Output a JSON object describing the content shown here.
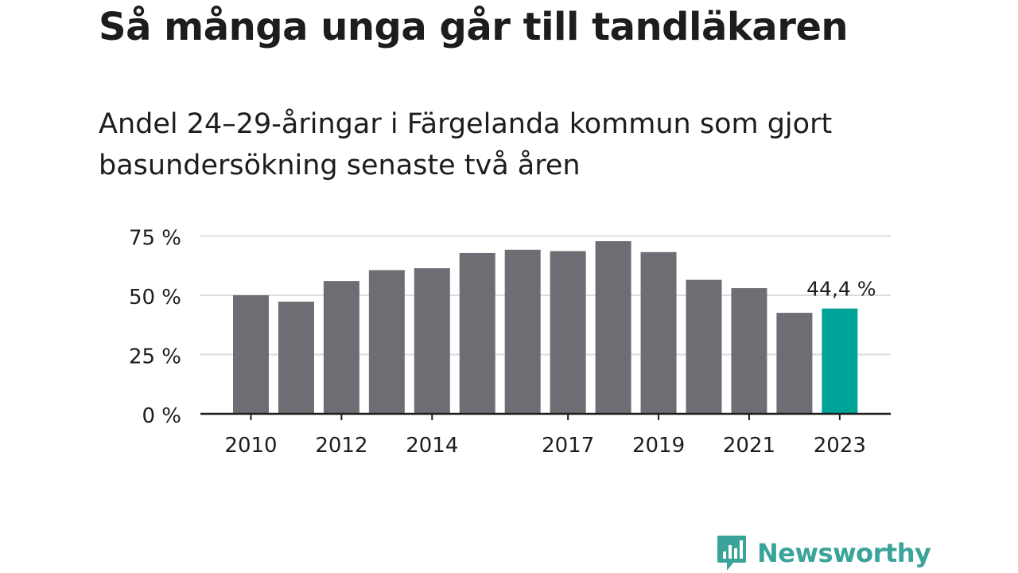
{
  "title": "Så många unga går till tandläkaren",
  "subtitle": "Andel 24–29-åringar i Färgelanda kommun som gjort basundersökning senaste två åren",
  "brand": "Newsworthy",
  "chart_data": {
    "type": "bar",
    "categories": [
      "2010",
      "2011",
      "2012",
      "2013",
      "2014",
      "2015",
      "2016",
      "2017",
      "2018",
      "2019",
      "2020",
      "2021",
      "2022",
      "2023"
    ],
    "values": [
      50.0,
      47.3,
      56.0,
      60.6,
      61.4,
      67.8,
      69.2,
      68.6,
      72.8,
      68.2,
      56.5,
      53.0,
      42.6,
      44.4
    ],
    "x_tick_labels": [
      "2010",
      "",
      "2012",
      "",
      "2014",
      "",
      "",
      "2017",
      "",
      "2019",
      "",
      "2021",
      "",
      "2023"
    ],
    "y_ticks": [
      0,
      25,
      50,
      75
    ],
    "y_tick_labels": [
      "0 %",
      "25 %",
      "50 %",
      "75 %"
    ],
    "ylim": [
      0,
      80
    ],
    "highlight_index": 13,
    "highlight_label": "44,4 %",
    "grid": true,
    "colors": {
      "bar": "#6e6d74",
      "highlight": "#00a398",
      "grid": "#dcdcdc",
      "axis": "#1d1d1b"
    }
  }
}
